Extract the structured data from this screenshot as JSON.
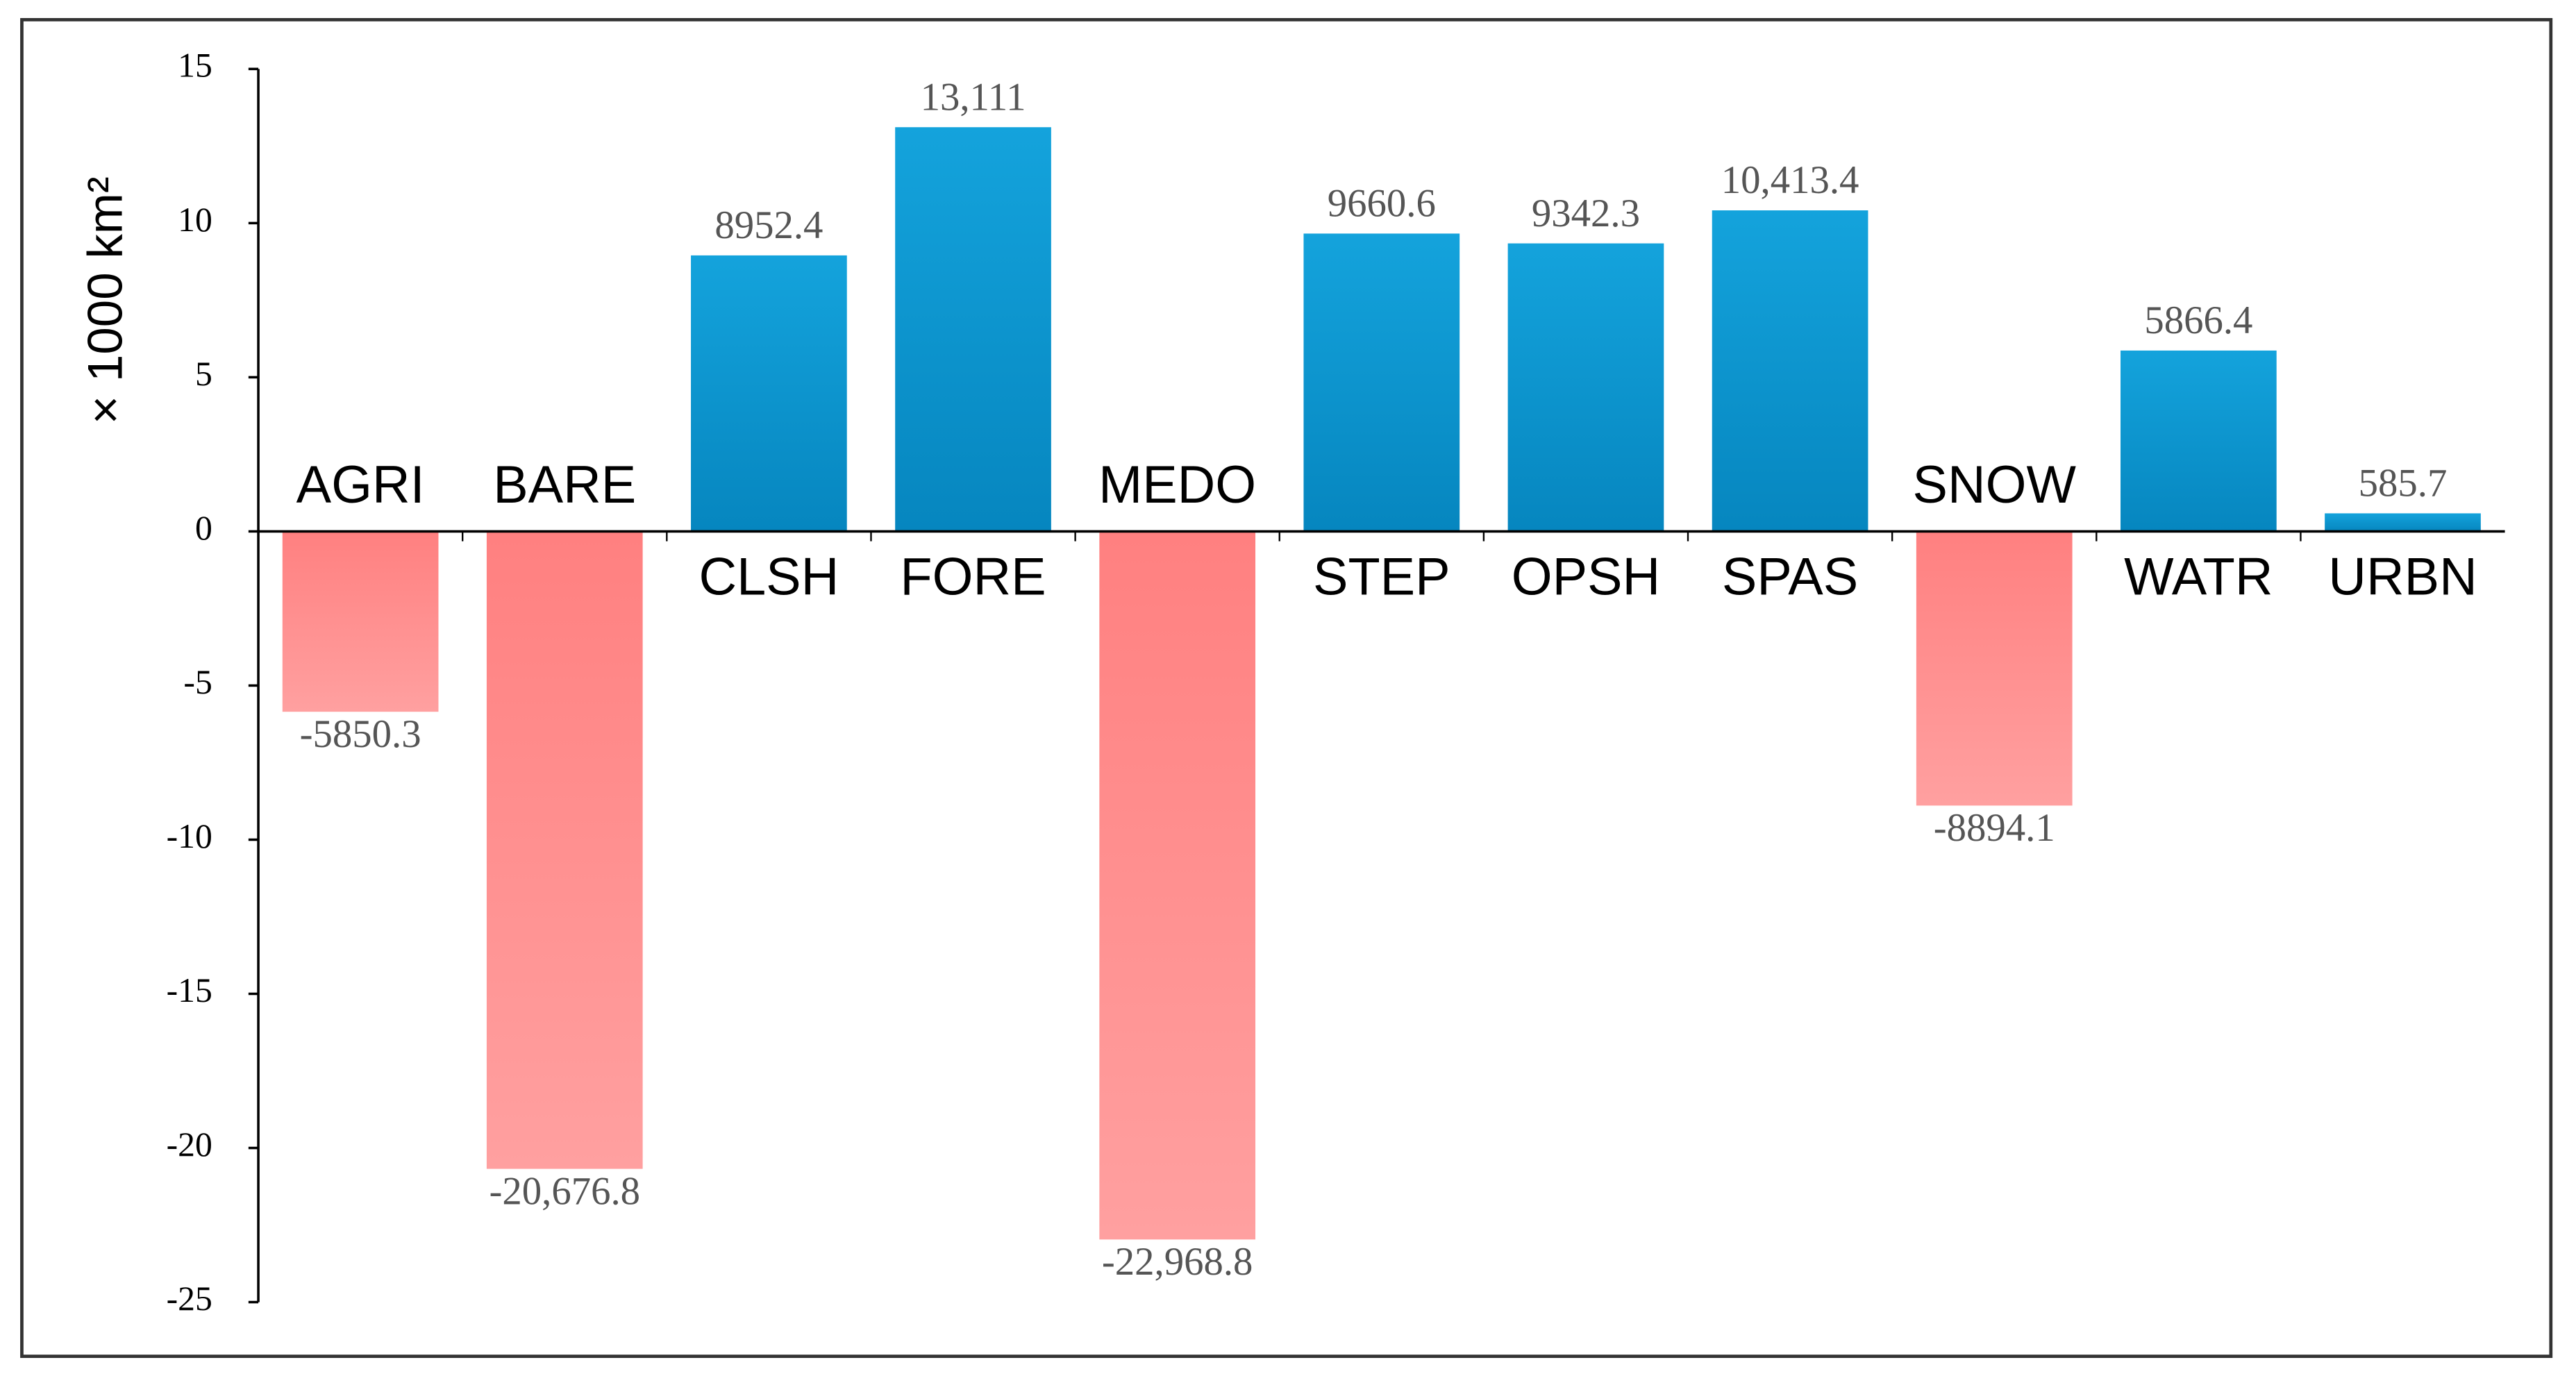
{
  "chart_data": {
    "type": "bar",
    "y_label": "× 1000 km²",
    "categories": [
      "AGRI",
      "BARE",
      "CLSH",
      "FORE",
      "MEDO",
      "STEP",
      "OPSH",
      "SPAS",
      "SNOW",
      "WATR",
      "URBN"
    ],
    "values": [
      -5.8503,
      -20.6768,
      8.9524,
      13.111,
      -22.9688,
      9.6606,
      9.3423,
      10.4134,
      -8.8941,
      5.8664,
      0.5857
    ],
    "value_labels": [
      "-5850.3",
      "-20,676.8",
      "8952.4",
      "13,111",
      "-22,968.8",
      "9660.6",
      "9342.3",
      "10,413.4",
      "-8894.1",
      "5866.4",
      "585.7"
    ],
    "positive_color": "#0a93cc",
    "negative_color": "#ff8c8c",
    "ylim": [
      -25,
      15
    ],
    "yticks": [
      -25,
      -20,
      -15,
      -10,
      -5,
      0,
      5,
      10,
      15
    ],
    "grid": false
  }
}
